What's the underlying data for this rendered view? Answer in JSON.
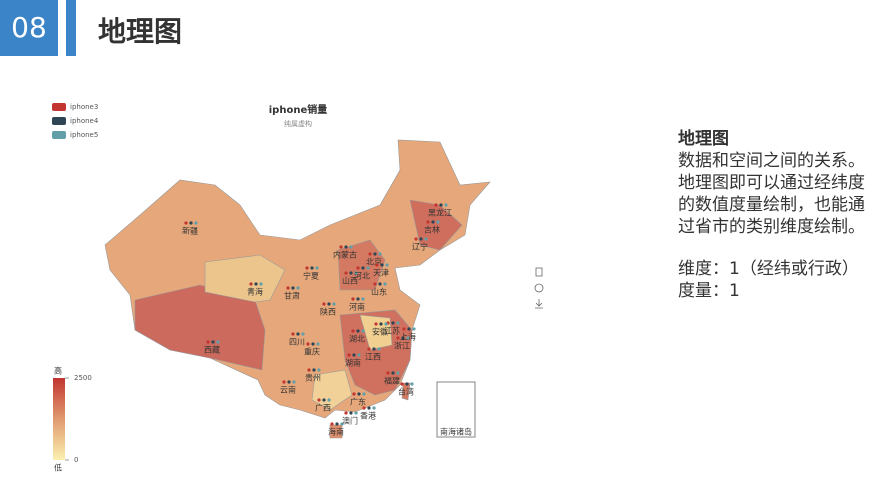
{
  "header": {
    "number": "08",
    "title": "地理图"
  },
  "chart_data": {
    "type": "map",
    "title": "iphone销量",
    "subtitle": "纯属虚构",
    "series": [
      {
        "name": "iphone3",
        "color": "#c23531"
      },
      {
        "name": "iphone4",
        "color": "#2f4554"
      },
      {
        "name": "iphone5",
        "color": "#61a0a8"
      }
    ],
    "visual_map": {
      "min": 0,
      "max": 2500,
      "high_label": "高",
      "low_label": "低"
    },
    "regions": [
      "新疆",
      "西藏",
      "青海",
      "甘肃",
      "内蒙古",
      "宁夏",
      "陕西",
      "四川",
      "重庆",
      "云南",
      "贵州",
      "广西",
      "广东",
      "海南",
      "湖南",
      "湖北",
      "江西",
      "福建",
      "台湾",
      "浙江",
      "上海",
      "江苏",
      "安徽",
      "河南",
      "山东",
      "山西",
      "河北",
      "北京",
      "天津",
      "辽宁",
      "吉林",
      "黑龙江",
      "澳门",
      "香港",
      "南海诸岛"
    ]
  },
  "sidebar": {
    "heading": "地理图",
    "description": "数据和空间之间的关系。地理图即可以通过经纬度的数值度量绘制，也能通过省市的类别维度绘制。",
    "dimension": "维度：1（经纬或行政）",
    "measure": "度量：1"
  }
}
